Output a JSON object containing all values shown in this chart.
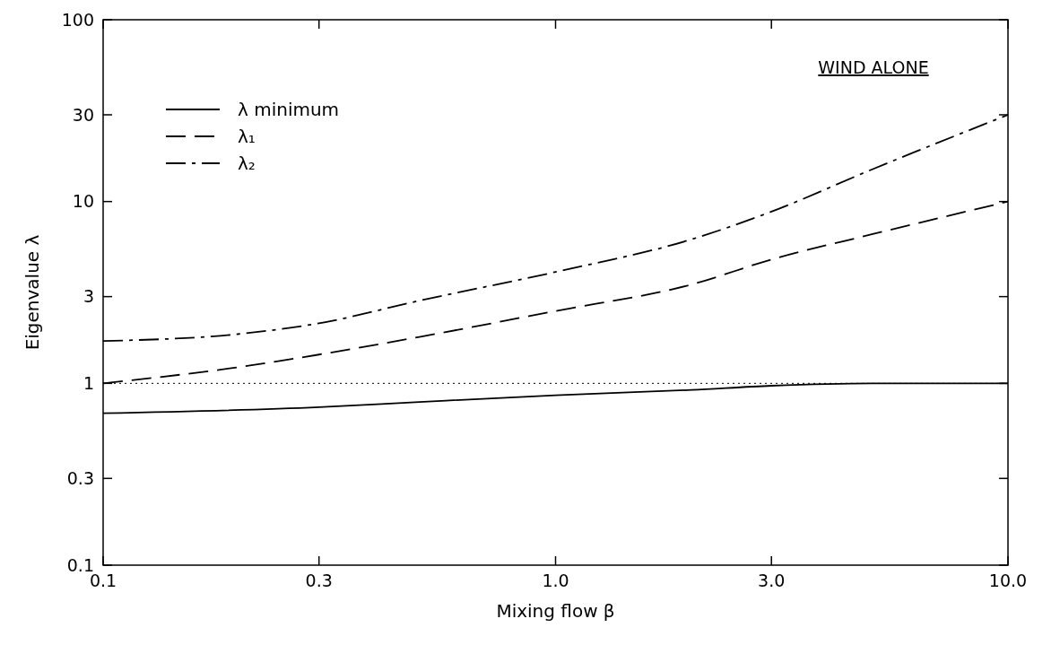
{
  "chart_data": {
    "type": "line",
    "xlabel": "Mixing flow β",
    "ylabel": "Eigenvalue λ",
    "log": "xy",
    "grid": false,
    "legend": "top left",
    "xlim": [
      0.1,
      10
    ],
    "xticks": [
      0.1,
      0.3,
      {
        "value": 1,
        "label": "1.0"
      },
      {
        "value": 3,
        "label": "3.0"
      },
      {
        "value": 10,
        "label": "10.0"
      }
    ],
    "ylim": [
      0.1,
      100
    ],
    "yticks": [
      0.1,
      0.3,
      1,
      3,
      10,
      30,
      100
    ],
    "annotations": [
      "WIND ALONE"
    ],
    "ref_lines": [
      {
        "axis": "y",
        "value": 1,
        "label": null,
        "line_style": "dotted",
        "color": "#000000"
      }
    ],
    "series": [
      {
        "name": "λ minimum",
        "color": "#000000",
        "line_style": "solid",
        "x": [
          0.1,
          0.3,
          0.5,
          1,
          2,
          3,
          5,
          10
        ],
        "values": [
          0.685,
          0.74,
          0.79,
          0.86,
          0.92,
          0.97,
          1.0,
          1.0
        ]
      },
      {
        "name": "λ₁",
        "color": "#000000",
        "line_style": "dashed",
        "x": [
          0.1,
          0.2,
          0.3,
          0.5,
          1,
          2,
          3,
          5,
          10
        ],
        "values": [
          1.0,
          1.23,
          1.44,
          1.8,
          2.5,
          3.5,
          4.8,
          6.6,
          10
        ]
      },
      {
        "name": "λ₂",
        "color": "#000000",
        "line_style": "dashdot",
        "x": [
          0.1,
          0.2,
          0.3,
          0.5,
          1,
          2,
          3,
          5,
          10
        ],
        "values": [
          1.71,
          1.87,
          2.14,
          2.85,
          4.1,
          6.2,
          8.8,
          15,
          30
        ]
      }
    ]
  }
}
